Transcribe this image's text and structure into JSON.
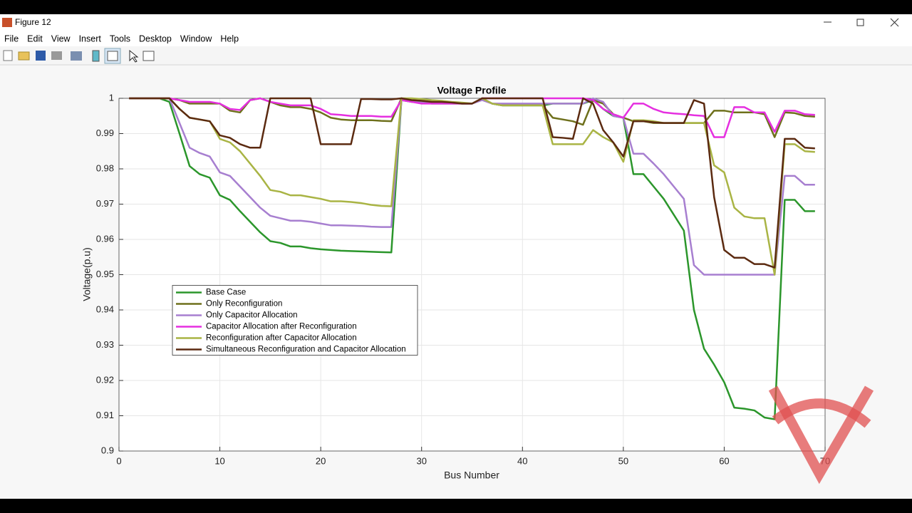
{
  "window": {
    "title": "Figure 12",
    "menu": [
      "File",
      "Edit",
      "View",
      "Insert",
      "Tools",
      "Desktop",
      "Window",
      "Help"
    ]
  },
  "chart_data": {
    "type": "line",
    "title": "Voltage Profile",
    "x_label": "Bus Number",
    "y_label": "Voltage(p.u)",
    "x": [
      1,
      2,
      3,
      4,
      5,
      6,
      7,
      8,
      9,
      10,
      11,
      12,
      13,
      14,
      15,
      16,
      17,
      18,
      19,
      20,
      21,
      22,
      23,
      24,
      25,
      26,
      27,
      28,
      29,
      30,
      31,
      32,
      33,
      34,
      35,
      36,
      37,
      38,
      39,
      40,
      41,
      42,
      43,
      44,
      45,
      46,
      47,
      48,
      49,
      50,
      51,
      52,
      53,
      54,
      55,
      56,
      57,
      58,
      59,
      60,
      61,
      62,
      63,
      64,
      65,
      66,
      67,
      68,
      69
    ],
    "xlim": [
      0,
      70
    ],
    "xticks": [
      0,
      10,
      20,
      30,
      40,
      50,
      60,
      70
    ],
    "ylim": [
      0.9,
      1
    ],
    "yticks": [
      0.9,
      0.91,
      0.92,
      0.93,
      0.94,
      0.95,
      0.96,
      0.97,
      0.98,
      0.99,
      1
    ],
    "grid": true,
    "legend_position": "west",
    "series": [
      {
        "name": "Base Case",
        "color": "#2b962b",
        "values": [
          1,
          1,
          1,
          1,
          0.999,
          0.99,
          0.9808,
          0.9785,
          0.9775,
          0.9725,
          0.9712,
          0.968,
          0.965,
          0.962,
          0.9595,
          0.959,
          0.958,
          0.958,
          0.9575,
          0.9572,
          0.957,
          0.9568,
          0.9567,
          0.9566,
          0.9565,
          0.9564,
          0.9563,
          0.9995,
          0.999,
          0.9988,
          0.9985,
          0.9985,
          0.9985,
          0.9985,
          0.9985,
          1,
          0.9985,
          0.998,
          0.998,
          0.998,
          0.998,
          0.998,
          0.9985,
          0.9985,
          0.9985,
          0.9985,
          0.9995,
          0.997,
          0.995,
          0.9945,
          0.9785,
          0.9785,
          0.975,
          0.9715,
          0.967,
          0.9625,
          0.94,
          0.929,
          0.9245,
          0.9195,
          0.9123,
          0.912,
          0.9115,
          0.9095,
          0.909,
          0.9712,
          0.9712,
          0.968,
          0.968
        ]
      },
      {
        "name": "Only Reconfiguration",
        "color": "#6e701c",
        "values": [
          1,
          1,
          1,
          1,
          1,
          0.9995,
          0.9985,
          0.9985,
          0.9985,
          0.9985,
          0.9965,
          0.996,
          0.9995,
          1,
          0.999,
          0.998,
          0.9975,
          0.9975,
          0.997,
          0.996,
          0.9945,
          0.994,
          0.9938,
          0.9938,
          0.9938,
          0.9936,
          0.9935,
          1,
          0.9995,
          0.9993,
          0.999,
          0.999,
          0.9988,
          0.9985,
          0.9985,
          1,
          0.9985,
          0.998,
          0.998,
          0.998,
          0.998,
          0.998,
          0.9945,
          0.994,
          0.9935,
          0.9925,
          0.9995,
          0.9985,
          0.9955,
          0.9945,
          0.9935,
          0.9935,
          0.993,
          0.993,
          0.993,
          0.993,
          0.993,
          0.993,
          0.9965,
          0.9965,
          0.996,
          0.996,
          0.996,
          0.9955,
          0.989,
          0.996,
          0.9958,
          0.995,
          0.9948
        ]
      },
      {
        "name": "Only Capacitor Allocation",
        "color": "#a77fd0",
        "values": [
          1,
          1,
          1,
          1,
          1,
          0.993,
          0.986,
          0.9845,
          0.9835,
          0.979,
          0.978,
          0.975,
          0.972,
          0.969,
          0.9667,
          0.966,
          0.9653,
          0.9653,
          0.965,
          0.9645,
          0.964,
          0.964,
          0.9639,
          0.9638,
          0.9636,
          0.9635,
          0.9635,
          0.9995,
          0.9993,
          0.999,
          0.999,
          0.9988,
          0.9988,
          0.9985,
          0.9985,
          0.9995,
          0.9985,
          0.9985,
          0.9985,
          0.9985,
          0.9985,
          0.9985,
          0.9985,
          0.9985,
          0.9985,
          0.9985,
          1,
          0.999,
          0.995,
          0.9945,
          0.9843,
          0.9843,
          0.9815,
          0.9785,
          0.975,
          0.9715,
          0.9527,
          0.95,
          0.95,
          0.95,
          0.95,
          0.95,
          0.95,
          0.95,
          0.95,
          0.978,
          0.978,
          0.9755,
          0.9755
        ]
      },
      {
        "name": "Capacitor Allocation after Reconfiguration",
        "color": "#e52fe0",
        "values": [
          1,
          1,
          1,
          1,
          1,
          0.9995,
          0.999,
          0.999,
          0.999,
          0.9985,
          0.997,
          0.9967,
          0.9995,
          1,
          0.999,
          0.9985,
          0.998,
          0.998,
          0.998,
          0.997,
          0.9955,
          0.9953,
          0.995,
          0.995,
          0.995,
          0.9948,
          0.9948,
          0.9995,
          0.999,
          0.9985,
          0.9985,
          0.9985,
          0.9985,
          0.9985,
          0.9985,
          1,
          1,
          1,
          1,
          1,
          1,
          1,
          1,
          1,
          1,
          1,
          0.9995,
          0.997,
          0.9955,
          0.9945,
          0.9985,
          0.9985,
          0.997,
          0.996,
          0.9957,
          0.9955,
          0.9952,
          0.995,
          0.989,
          0.989,
          0.9975,
          0.9975,
          0.996,
          0.996,
          0.9905,
          0.9965,
          0.9965,
          0.9955,
          0.9953
        ]
      },
      {
        "name": "Reconfiguration after Capacitor Allocation",
        "color": "#a9b444",
        "values": [
          1,
          1,
          1,
          1,
          1,
          0.997,
          0.9945,
          0.994,
          0.9935,
          0.9885,
          0.9875,
          0.985,
          0.9815,
          0.978,
          0.974,
          0.9735,
          0.9725,
          0.9725,
          0.972,
          0.9715,
          0.9708,
          0.9708,
          0.9706,
          0.9703,
          0.9698,
          0.9695,
          0.9694,
          1,
          1,
          0.9998,
          0.9995,
          0.9993,
          0.999,
          0.9988,
          0.9985,
          1,
          0.9985,
          0.998,
          0.998,
          0.998,
          0.998,
          0.998,
          0.987,
          0.987,
          0.987,
          0.987,
          0.991,
          0.989,
          0.9875,
          0.982,
          0.9938,
          0.9938,
          0.9935,
          0.993,
          0.993,
          0.993,
          0.993,
          0.993,
          0.981,
          0.979,
          0.969,
          0.9665,
          0.966,
          0.966,
          0.95,
          0.987,
          0.987,
          0.985,
          0.9848
        ]
      },
      {
        "name": "Simultaneous Reconfiguration and Capacitor Allocation",
        "color": "#5b2a10",
        "values": [
          1,
          1,
          1,
          1,
          1,
          0.997,
          0.9945,
          0.994,
          0.9935,
          0.9895,
          0.9888,
          0.987,
          0.986,
          0.986,
          1,
          1,
          1,
          1,
          1,
          0.987,
          0.987,
          0.987,
          0.987,
          0.9998,
          0.9998,
          0.9997,
          0.9997,
          1,
          0.9995,
          0.9993,
          0.999,
          0.999,
          0.9988,
          0.9985,
          0.9985,
          1,
          1,
          1,
          1,
          1,
          1,
          1,
          0.989,
          0.9888,
          0.9885,
          1,
          0.9985,
          0.991,
          0.9875,
          0.9835,
          0.9935,
          0.9935,
          0.9932,
          0.993,
          0.993,
          0.993,
          0.9995,
          0.9985,
          0.972,
          0.957,
          0.9548,
          0.9548,
          0.953,
          0.953,
          0.952,
          0.9885,
          0.9885,
          0.986,
          0.9858
        ]
      }
    ]
  }
}
